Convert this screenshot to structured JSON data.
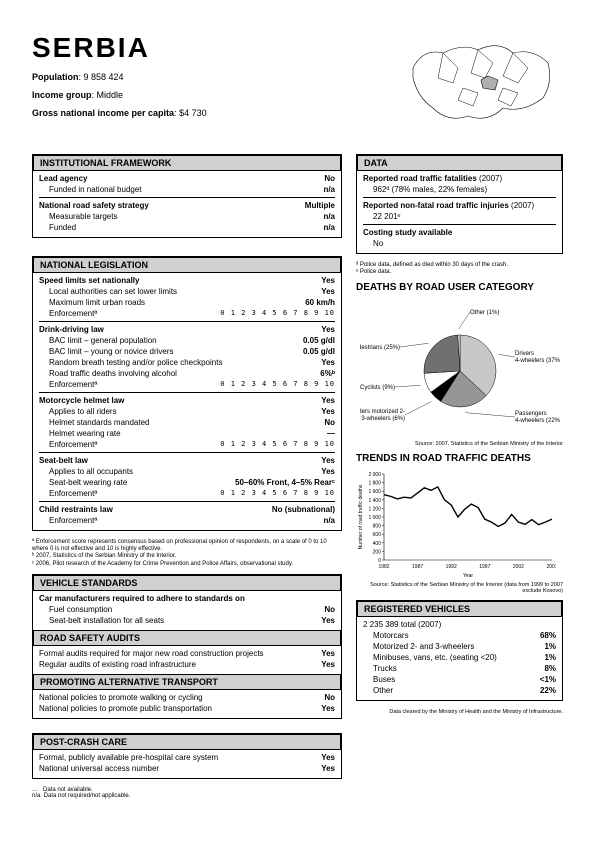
{
  "country": "SERBIA",
  "population_label": "Population",
  "population": "9 858 424",
  "income_group_label": "Income group",
  "income_group": "Middle",
  "gni_label": "Gross national income per capita",
  "gni": "$4 730",
  "sections": {
    "inst_fw": {
      "title": "INSTITUTIONAL FRAMEWORK",
      "lead_agency": "Lead agency",
      "lead_agency_v": "No",
      "funded_budget": "Funded in national budget",
      "funded_budget_v": "n/a",
      "strategy": "National road safety strategy",
      "strategy_v": "Multiple",
      "targets": "Measurable targets",
      "targets_v": "n/a",
      "funded": "Funded",
      "funded_v": "n/a"
    },
    "nat_leg": {
      "title": "NATIONAL LEGISLATION",
      "speed_title": "Speed limits set nationally",
      "speed_v": "Yes",
      "local_auth": "Local authorities can set lower limits",
      "local_auth_v": "Yes",
      "max_urban": "Maximum limit urban roads",
      "max_urban_v": "60 km/h",
      "enforcement": "Enforcementª",
      "drink_title": "Drink-driving law",
      "drink_v": "Yes",
      "bac_gen": "BAC limit – general population",
      "bac_gen_v": "0.05 g/dl",
      "bac_young": "BAC limit – young or novice drivers",
      "bac_young_v": "0.05 g/dl",
      "rbt": "Random breath testing and/or police checkpoints",
      "rbt_v": "Yes",
      "deaths_alc": "Road traffic deaths involving alcohol",
      "deaths_alc_v": "6%ᵇ",
      "helmet_title": "Motorcycle helmet law",
      "helmet_v": "Yes",
      "applies_riders": "Applies to all riders",
      "applies_riders_v": "Yes",
      "helmet_std": "Helmet standards mandated",
      "helmet_std_v": "No",
      "helmet_rate": "Helmet wearing rate",
      "helmet_rate_v": "—",
      "seatbelt_title": "Seat-belt law",
      "seatbelt_v": "Yes",
      "applies_occ": "Applies to all occupants",
      "applies_occ_v": "Yes",
      "sb_rate": "Seat-belt wearing rate",
      "sb_rate_v": "50–60% Front, 4–5% Rearᶜ",
      "child_title": "Child restraints law",
      "child_v": "No (subnational)",
      "child_enf_v": "n/a",
      "scale_txt": "0 1 2 3 4 5 6 7 8 9 10",
      "note": "ª  Enforcement score represents consensus based on professional opinion of respondents, on a scale of 0 to 10 where 0 is not effective and 10 is highly effective.\nᵇ  2007, Statistics of the Serbian Ministry of the Interior.\nᶜ  2006, Pilot research of the Academy for Crime Prevention and Police Affairs, observational study."
    },
    "veh_std": {
      "title": "VEHICLE STANDARDS",
      "req": "Car manufacturers required to adhere to standards on",
      "fuel": "Fuel consumption",
      "fuel_v": "No",
      "seatbelt_inst": "Seat-belt installation for all seats",
      "seatbelt_inst_v": "Yes"
    },
    "audits": {
      "title": "ROAD SAFETY AUDITS",
      "formal": "Formal audits required for major new road construction projects",
      "formal_v": "Yes",
      "regular": "Regular audits of existing road infrastructure",
      "regular_v": "Yes"
    },
    "alt_trans": {
      "title": "PROMOTING ALTERNATIVE TRANSPORT",
      "walk": "National policies to promote walking or cycling",
      "walk_v": "No",
      "pub": "National policies to promote public transportation",
      "pub_v": "Yes"
    },
    "post_crash": {
      "title": "POST-CRASH CARE",
      "hosp": "Formal, publicly available pre-hospital care system",
      "hosp_v": "Yes",
      "access": "National universal access number",
      "access_v": "Yes"
    },
    "data": {
      "title": "DATA",
      "fatalities": "Reported road traffic fatalities",
      "fat_year": "(2007)",
      "fat_val": "962ᵈ (78% males, 22% females)",
      "injuries": "Reported non-fatal road traffic injuries",
      "inj_year": "(2007)",
      "inj_val": "22 201ᵉ",
      "costing": "Costing study available",
      "costing_v": "No",
      "note_d": "ᵈ  Police data, defined as died within 30 days of the crash.",
      "note_e": "ᵉ  Police data."
    },
    "pie": {
      "title": "DEATHS BY ROAD USER CATEGORY",
      "slices": [
        {
          "label": "Drivers 4-wheelers (37%)",
          "value": 37,
          "color": "#c8c8c8"
        },
        {
          "label": "Passengers 4-wheelers (22%)",
          "value": 22,
          "color": "#969696"
        },
        {
          "label": "Riders motorized 2- or 3-wheelers (6%)",
          "value": 6,
          "color": "#000000"
        },
        {
          "label": "Cyclists (9%)",
          "value": 9,
          "color": "#ffffff"
        },
        {
          "label": "Pedestrians (25%)",
          "value": 25,
          "color": "#707070"
        },
        {
          "label": "Other (1%)",
          "value": 1,
          "color": "#e8e8e8"
        }
      ],
      "source": "Source: 2007, Statistics of the Serbian Ministry of the Interior"
    },
    "trend": {
      "title": "TRENDS IN ROAD TRAFFIC DEATHS",
      "ylabel": "Number of road traffic deaths",
      "xlabel": "Year",
      "ylim": [
        0,
        2000
      ],
      "ytick_step": 200,
      "xticks": [
        1982,
        1987,
        1992,
        1997,
        2002,
        2007
      ],
      "data": [
        [
          1982,
          1520
        ],
        [
          1983,
          1480
        ],
        [
          1984,
          1420
        ],
        [
          1985,
          1460
        ],
        [
          1986,
          1440
        ],
        [
          1987,
          1560
        ],
        [
          1988,
          1680
        ],
        [
          1989,
          1620
        ],
        [
          1990,
          1700
        ],
        [
          1991,
          1400
        ],
        [
          1992,
          1280
        ],
        [
          1993,
          1000
        ],
        [
          1994,
          1180
        ],
        [
          1995,
          1300
        ],
        [
          1996,
          1220
        ],
        [
          1997,
          950
        ],
        [
          1998,
          880
        ],
        [
          1999,
          780
        ],
        [
          2000,
          860
        ],
        [
          2001,
          1060
        ],
        [
          2002,
          880
        ],
        [
          2003,
          830
        ],
        [
          2004,
          940
        ],
        [
          2005,
          820
        ],
        [
          2006,
          880
        ],
        [
          2007,
          950
        ]
      ],
      "line_color": "#000000",
      "source": "Source: Statistics of the Serbian Ministry of the Interior (data from 1999 to 2007 exclude Kosovo)"
    },
    "reg_veh": {
      "title": "REGISTERED VEHICLES",
      "total": "2 235 389 total (2007)",
      "rows": [
        [
          "Motorcars",
          "68%"
        ],
        [
          "Motorized 2- and 3-wheelers",
          "1%"
        ],
        [
          "Minibuses, vans, etc. (seating <20)",
          "1%"
        ],
        [
          "Trucks",
          "8%"
        ],
        [
          "Buses",
          "<1%"
        ],
        [
          "Other",
          "22%"
        ]
      ],
      "source": "Data cleared by the Ministry of Health and the Ministry of Infrastructure."
    }
  },
  "bottom_note": "…   Data not available.\nn/a  Data not required/not applicable."
}
